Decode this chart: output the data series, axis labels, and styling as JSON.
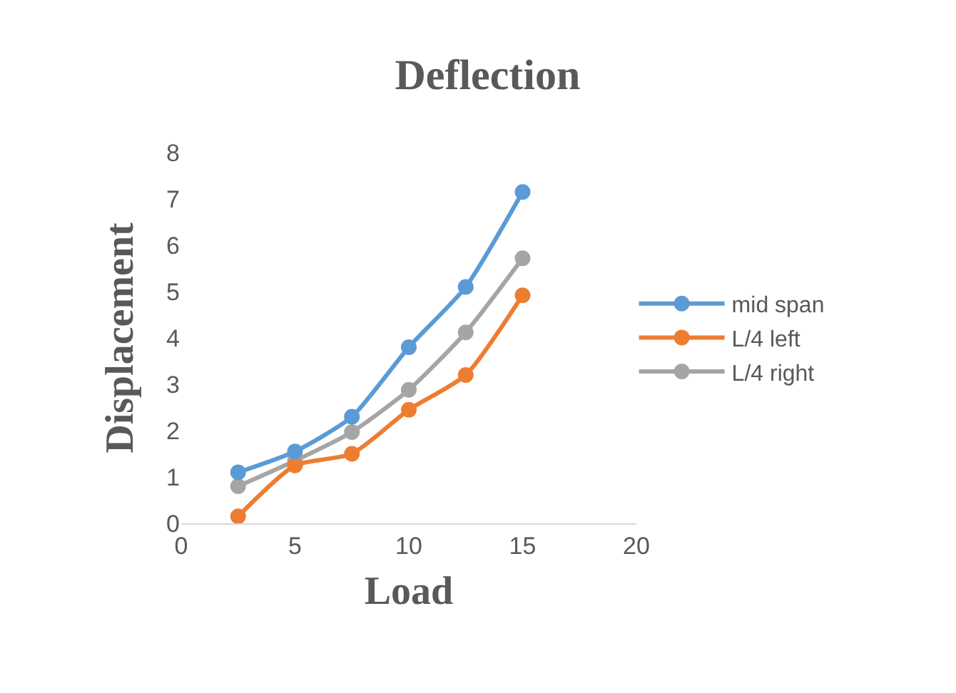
{
  "chart_data": {
    "type": "line",
    "title": "Deflection",
    "xlabel": "Load",
    "ylabel": "Displacement",
    "x": [
      2.5,
      5,
      7.5,
      10,
      12.5,
      15
    ],
    "series": [
      {
        "name": "mid span",
        "color": "#5b9bd5",
        "values": [
          1.1,
          1.55,
          2.3,
          3.8,
          5.1,
          7.15
        ]
      },
      {
        "name": "L/4 left",
        "color": "#ed7d31",
        "values": [
          0.15,
          1.25,
          1.5,
          2.45,
          3.2,
          4.92
        ]
      },
      {
        "name": "L/4 right",
        "color": "#a5a5a5",
        "values": [
          0.8,
          1.35,
          1.97,
          2.88,
          4.12,
          5.72
        ]
      }
    ],
    "xlim": [
      0,
      20
    ],
    "xticks": [
      0,
      5,
      10,
      15,
      20
    ],
    "ylim": [
      0,
      8
    ],
    "yticks": [
      0,
      1,
      2,
      3,
      4,
      5,
      6,
      7,
      8
    ],
    "grid": false,
    "legend": "right",
    "marker": "circle",
    "line_style": "solid"
  }
}
